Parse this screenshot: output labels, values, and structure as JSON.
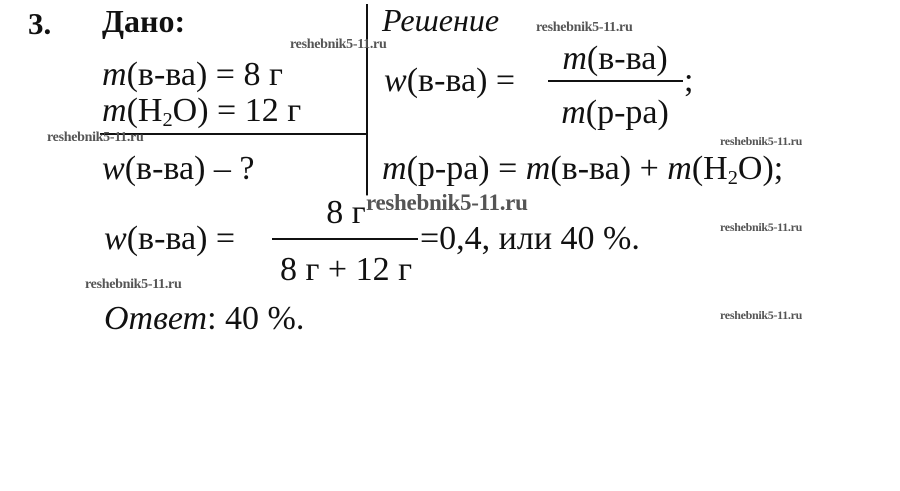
{
  "problem": {
    "number": "3.",
    "given_title": "Дано:",
    "given": [
      {
        "m": "m",
        "rest": "(в-ва) = 8 г"
      },
      {
        "m": "m",
        "pre": "(H",
        "sub": "2",
        "post": "O) = 12 г"
      }
    ],
    "find": {
      "w": "w",
      "rest": "(в-ва) – ?"
    },
    "solution_title": "Решение",
    "formula1": {
      "lhs_w": "w",
      "lhs_rest": "(в-ва) =",
      "num_m": "m",
      "num_rest": "(в-ва)",
      "den_m": "m",
      "den_rest": "(р-ра)",
      "end": ";"
    },
    "formula2": {
      "m1": "m",
      "t1": "(р-ра) = ",
      "m2": "m",
      "t2": "(в-ва) + ",
      "m3": "m",
      "t3": "(H",
      "sub": "2",
      "t4": "O);"
    },
    "formula3": {
      "lhs_w": "w",
      "lhs_rest": "(в-ва) =",
      "num": "8 г",
      "den": "8 г + 12 г",
      "result": "=0,4, или 40 %."
    },
    "answer_label": "Ответ",
    "answer_value": ": 40 %."
  },
  "watermark": "reshebnik5-11.ru"
}
